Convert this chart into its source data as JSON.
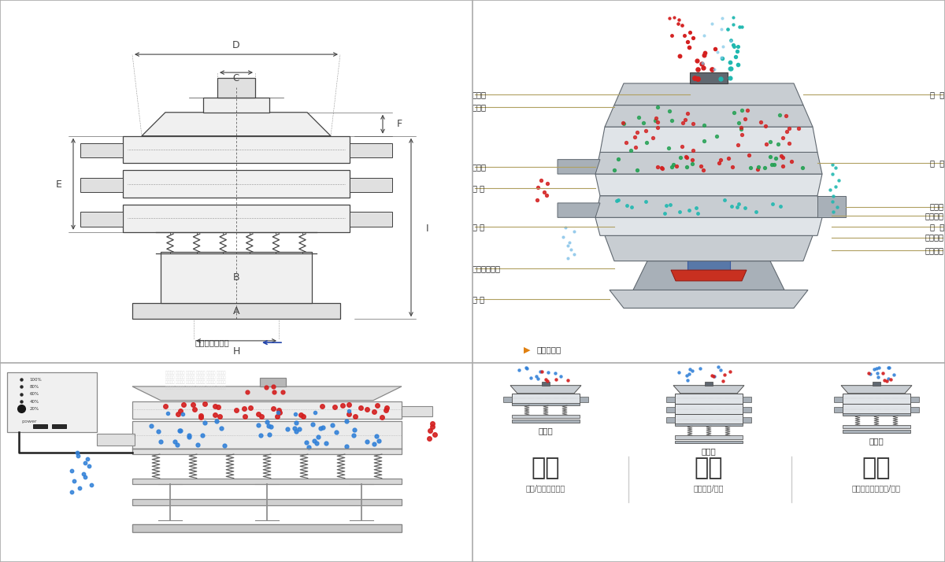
{
  "bg_color": "#ffffff",
  "top_left_label": "外形尺寸示意图",
  "top_right_label": "结构示意图",
  "structure_labels_left": [
    "进料口",
    "防尘盖",
    "出料口",
    "束 环",
    "弹 簧",
    "运输固定螺栓",
    "机 座"
  ],
  "structure_labels_right": [
    "筛  网",
    "网  架",
    "加重块",
    "上部重锤",
    "筛  盘",
    "振动电机",
    "下部重锤"
  ],
  "mode_names": [
    "单层式",
    "三层式",
    "双层式"
  ],
  "mode_labels": [
    "分级",
    "过滤",
    "除杂"
  ],
  "mode_desc": [
    "颗粒/粉末准确分级",
    "去除异物/结块",
    "去除液体中的颗粒/异物"
  ],
  "red_dot_color": "#d42020",
  "blue_dot_color": "#3080d8",
  "green_dot_color": "#20a050",
  "teal_dot_color": "#20b8b0",
  "dim_line_color": "#444444",
  "label_line_color": "#b0a060",
  "machine_gray1": "#c8cdd2",
  "machine_gray2": "#a8b0b8",
  "machine_gray3": "#e0e4e8",
  "machine_dark": "#606870"
}
